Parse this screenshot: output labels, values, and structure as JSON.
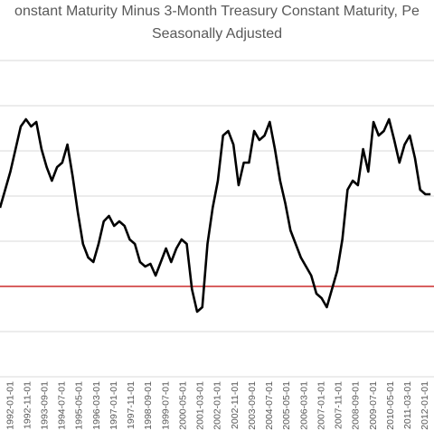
{
  "chart_data": {
    "type": "line",
    "title": "onstant Maturity Minus 3-Month Treasury Constant Maturity, Pe",
    "subtitle": "Seasonally Adjusted",
    "x": [
      "1991-07-01",
      "1991-10-01",
      "1992-01-01",
      "1992-04-01",
      "1992-07-01",
      "1992-10-01",
      "1993-01-01",
      "1993-04-01",
      "1993-07-01",
      "1993-10-01",
      "1994-01-01",
      "1994-04-01",
      "1994-07-01",
      "1994-10-01",
      "1995-01-01",
      "1995-04-01",
      "1995-07-01",
      "1995-10-01",
      "1996-01-01",
      "1996-04-01",
      "1996-07-01",
      "1996-10-01",
      "1997-01-01",
      "1997-04-01",
      "1997-07-01",
      "1997-10-01",
      "1998-01-01",
      "1998-04-01",
      "1998-07-01",
      "1998-10-01",
      "1999-01-01",
      "1999-04-01",
      "1999-07-01",
      "1999-10-01",
      "2000-01-01",
      "2000-04-01",
      "2000-07-01",
      "2000-10-01",
      "2001-01-01",
      "2001-04-01",
      "2001-07-01",
      "2001-10-01",
      "2002-01-01",
      "2002-04-01",
      "2002-07-01",
      "2002-10-01",
      "2003-01-01",
      "2003-04-01",
      "2003-07-01",
      "2003-10-01",
      "2004-01-01",
      "2004-04-01",
      "2004-07-01",
      "2004-10-01",
      "2005-01-01",
      "2005-04-01",
      "2005-07-01",
      "2005-10-01",
      "2006-01-01",
      "2006-04-01",
      "2006-07-01",
      "2006-10-01",
      "2007-01-01",
      "2007-04-01",
      "2007-07-01",
      "2007-10-01",
      "2008-01-01",
      "2008-04-01",
      "2008-07-01",
      "2008-10-01",
      "2009-01-01",
      "2009-04-01",
      "2009-07-01",
      "2009-10-01",
      "2010-01-01",
      "2010-04-01",
      "2010-07-01",
      "2010-10-01",
      "2011-01-01",
      "2011-04-01",
      "2011-07-01",
      "2011-10-01",
      "2012-01-01",
      "2012-04-01"
    ],
    "series": [
      {
        "color": "#000000",
        "values": [
          1.74,
          2.14,
          2.54,
          3.04,
          3.54,
          3.7,
          3.54,
          3.64,
          3.04,
          2.64,
          2.34,
          2.64,
          2.74,
          3.14,
          2.44,
          1.64,
          0.94,
          0.64,
          0.54,
          0.94,
          1.44,
          1.56,
          1.34,
          1.44,
          1.34,
          1.04,
          0.94,
          0.54,
          0.44,
          0.5,
          0.24,
          0.54,
          0.84,
          0.54,
          0.84,
          1.04,
          0.94,
          -0.06,
          -0.56,
          -0.46,
          0.94,
          1.74,
          2.34,
          3.34,
          3.44,
          3.14,
          2.24,
          2.74,
          2.74,
          3.44,
          3.24,
          3.34,
          3.64,
          3.04,
          2.34,
          1.84,
          1.24,
          0.94,
          0.64,
          0.44,
          0.24,
          -0.16,
          -0.26,
          -0.46,
          -0.06,
          0.34,
          1.04,
          2.14,
          2.34,
          2.24,
          3.04,
          2.54,
          3.64,
          3.34,
          3.44,
          3.7,
          3.24,
          2.74,
          3.14,
          3.34,
          2.84,
          2.14,
          2.04,
          2.04
        ]
      }
    ],
    "xlim": [
      "1991-07-01",
      "2012-06-01"
    ],
    "xticks": [
      "1992-01-01",
      "1992-11-01",
      "1993-09-01",
      "1994-07-01",
      "1995-05-01",
      "1996-03-01",
      "1997-01-01",
      "1997-11-01",
      "1998-09-01",
      "1999-07-01",
      "2000-05-01",
      "2001-03-01",
      "2002-01-01",
      "2002-11-01",
      "2003-09-01",
      "2004-07-01",
      "2005-05-01",
      "2006-03-01",
      "2007-01-01",
      "2007-11-01",
      "2008-09-01",
      "2009-07-01",
      "2010-05-01",
      "2011-03-01",
      "2012-01-01"
    ],
    "ylim": [
      -2,
      5
    ],
    "yticks": [
      -2,
      -1,
      0,
      1,
      2,
      3,
      4,
      5
    ],
    "grid": true,
    "reference_line": {
      "value": 0,
      "color": "#c00000"
    }
  }
}
